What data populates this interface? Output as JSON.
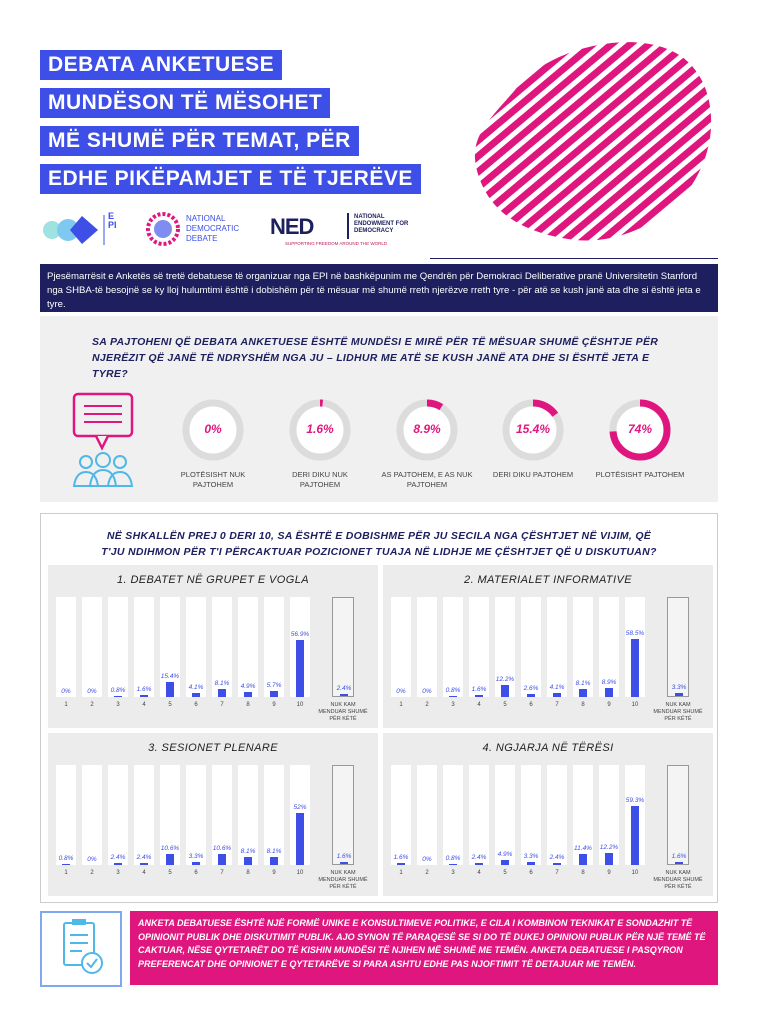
{
  "header": {
    "title_lines": [
      "DEBATA ANKETUESE",
      "MUNDËSON TË MËSOHET",
      "MË SHUMË PËR TEMAT, PËR",
      "EDHE PIKËPAMJET E TË TJERËVE"
    ]
  },
  "logos": {
    "epi": "EPI",
    "ndd": "NATIONAL DEMOCRATIC DEBATE",
    "ned": "NED",
    "ned_full": "NATIONAL ENDOWMENT FOR DEMOCRACY",
    "ned_tagline": "SUPPORTING FREEDOM AROUND THE WORLD"
  },
  "intro": "Pjesëmarrësit e Anketës së tretë debatuese të organizuar nga EPI në bashkëpunim me Qendrën për Demokraci Deliberative pranë Universitetin Stanford nga SHBA-të besojnë se ky lloj hulumtimi është i dobishëm për të mësuar më shumë rreth njerëzve rreth tyre - për atë se kush janë ata dhe si është jeta e tyre.",
  "agreement": {
    "question": "SA PAJTOHENI QË DEBATA ANKETUESE ËSHTË MUNDËSI E MIRË PËR TË MËSUAR SHUMË ÇËSHTJE PËR NJERËZIT QË JANË TË NDRYSHËM NGA JU – LIDHUR ME ATË SE KUSH JANË ATA DHE SI ËSHTË JETA E TYRE?",
    "color": "#e0167f",
    "items": [
      {
        "value": 0,
        "label": "0%",
        "caption": "PLOTËSISHT NUK PAJTOHEM"
      },
      {
        "value": 1.6,
        "label": "1.6%",
        "caption": "DERI DIKU NUK PAJTOHEM"
      },
      {
        "value": 8.9,
        "label": "8.9%",
        "caption": "AS PAJTOHEM, E AS NUK PAJTOHEM"
      },
      {
        "value": 15.4,
        "label": "15.4%",
        "caption": "DERI DIKU PAJTOHEM"
      },
      {
        "value": 74,
        "label": "74%",
        "caption": "PLOTËSISHT PAJTOHEM"
      }
    ]
  },
  "ratings": {
    "question": "NË SHKALLËN PREJ 0 DERI 10, SA ËSHTË E DOBISHME PËR JU SECILA NGA ÇËSHTJET NË VIJIM, QË T'JU NDIHMON PËR T'I PËRCAKTUAR POZICIONET TUAJA NË LIDHJE ME ÇËSHTJET QË U DISKUTUAN?"
  },
  "chart_data": [
    {
      "type": "bar",
      "title": "1. DEBATET NË GRUPET E VOGLA",
      "color": "#3d4fe6",
      "ylim": [
        0,
        100
      ],
      "categories": [
        "1",
        "2",
        "3",
        "4",
        "5",
        "6",
        "7",
        "8",
        "9",
        "10",
        "NUK KAM MENDUAR SHUMË PËR KËTË"
      ],
      "values": [
        0,
        0,
        0.8,
        1.6,
        15.4,
        4.1,
        8.1,
        4.9,
        5.7,
        56.9,
        2.4
      ],
      "value_labels": [
        "0%",
        "0%",
        "0.8%",
        "1.6%",
        "15.4%",
        "4.1%",
        "8.1%",
        "4.9%",
        "5.7%",
        "56.9%",
        "2.4%"
      ]
    },
    {
      "type": "bar",
      "title": "2. MATERIALET INFORMATIVE",
      "color": "#3d4fe6",
      "ylim": [
        0,
        100
      ],
      "categories": [
        "1",
        "2",
        "3",
        "4",
        "5",
        "6",
        "7",
        "8",
        "9",
        "10",
        "NUK KAM MENDUAR SHUMË PËR KËTË"
      ],
      "values": [
        0,
        0,
        0.8,
        1.6,
        12.2,
        2.6,
        4.1,
        8.1,
        8.9,
        58.5,
        3.3
      ],
      "value_labels": [
        "0%",
        "0%",
        "0.8%",
        "1.6%",
        "12.2%",
        "2.6%",
        "4.1%",
        "8.1%",
        "8.9%",
        "58.5%",
        "3.3%"
      ]
    },
    {
      "type": "bar",
      "title": "3. SESIONET PLENARE",
      "color": "#3d4fe6",
      "ylim": [
        0,
        100
      ],
      "categories": [
        "1",
        "2",
        "3",
        "4",
        "5",
        "6",
        "7",
        "8",
        "9",
        "10",
        "NUK KAM MENDUAR SHUMË PËR KËTË"
      ],
      "values": [
        0.8,
        0,
        2.4,
        2.4,
        10.6,
        3.3,
        10.6,
        8.1,
        8.1,
        52,
        1.6
      ],
      "value_labels": [
        "0.8%",
        "0%",
        "2.4%",
        "2.4%",
        "10.6%",
        "3.3%",
        "10.6%",
        "8.1%",
        "8.1%",
        "52%",
        "1.6%"
      ]
    },
    {
      "type": "bar",
      "title": "4. NGJARJA NË TËRËSI",
      "color": "#3d4fe6",
      "ylim": [
        0,
        100
      ],
      "categories": [
        "1",
        "2",
        "3",
        "4",
        "5",
        "6",
        "7",
        "8",
        "9",
        "10",
        "NUK KAM MENDUAR SHUMË PËR KËTË"
      ],
      "values": [
        1.6,
        0,
        0.8,
        2.4,
        4.9,
        3.3,
        2.4,
        11.4,
        12.2,
        59.3,
        1.6
      ],
      "value_labels": [
        "1.6%",
        "0%",
        "0.8%",
        "2.4%",
        "4.9%",
        "3.3%",
        "2.4%",
        "11.4%",
        "12.2%",
        "59.3%",
        "1.6%"
      ]
    }
  ],
  "footer": "ANKETA DEBATUESE ËSHTË NJË FORMË UNIKE E KONSULTIMEVE POLITIKE, E CILA I KOMBINON TEKNIKAT E SONDAZHIT TË OPINIONIT PUBLIK DHE DISKUTIMIT PUBLIK. AJO SYNON TË PARAQESË SE SI DO TË DUKEJ OPINIONI PUBLIK PËR NJË TEMË TË CAKTUAR, NËSE QYTETARËT DO TË KISHIN MUNDËSI TË NJIHEN MË SHUMË ME TEMËN. ANKETA DEBATUESE I PASQYRON PREFERENCAT DHE OPINIONET E QYTETARËVE SI PARA ASHTU EDHE PAS NJOFTIMIT TË DETAJUAR ME TEMËN."
}
